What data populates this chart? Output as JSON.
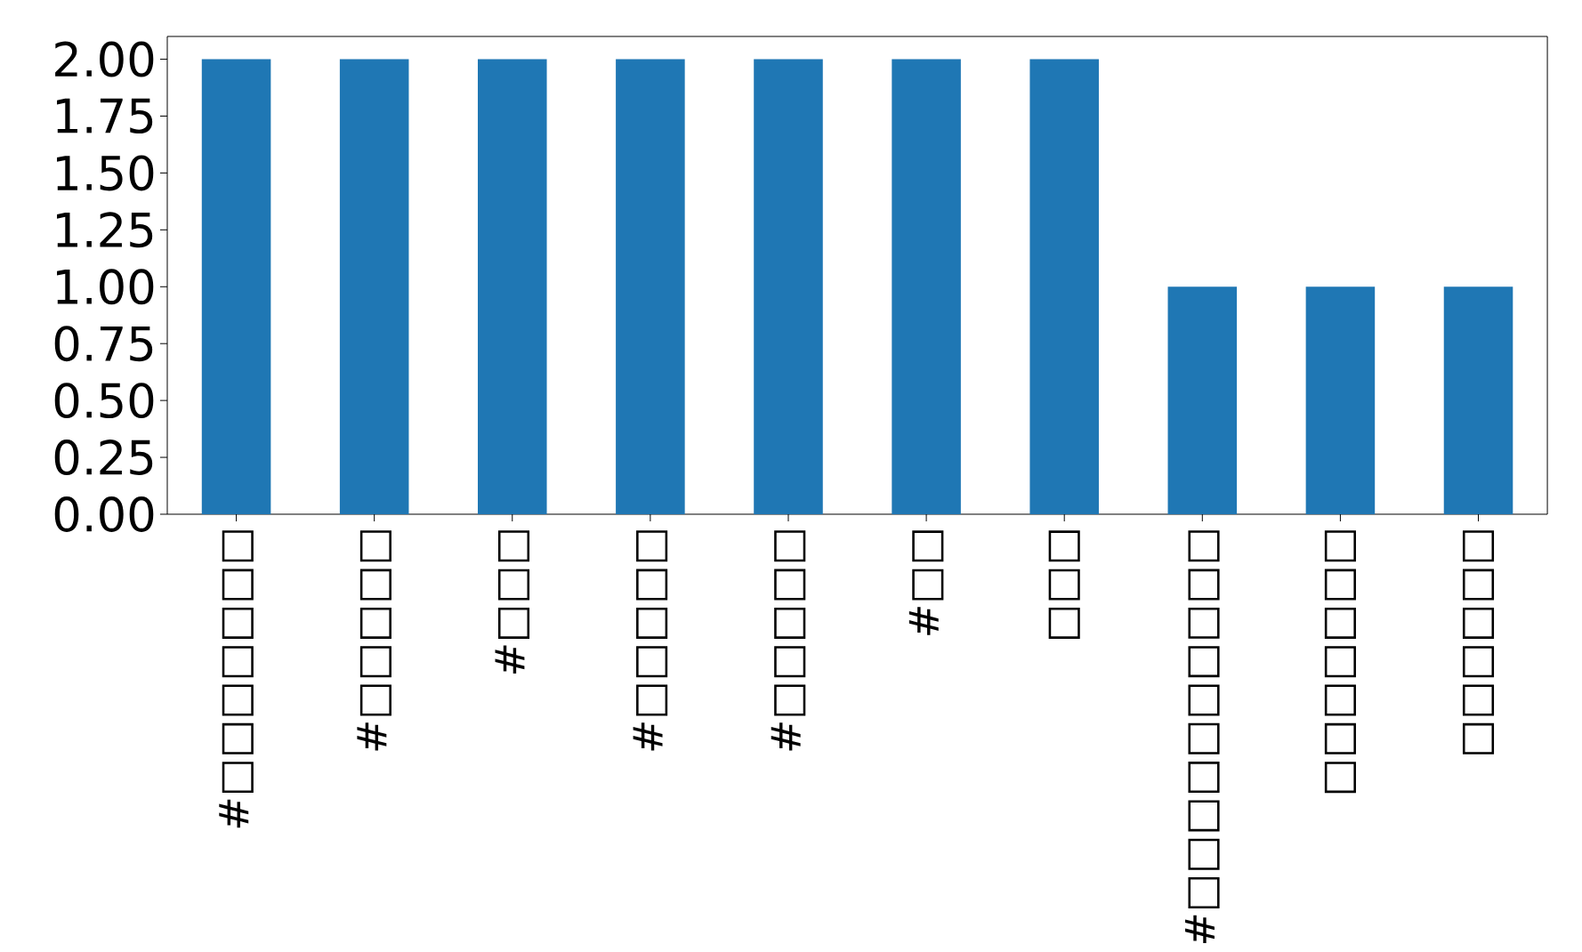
{
  "chart_data": {
    "type": "bar",
    "categories": [
      "#□□□□□□□",
      "#□□□□□",
      "#□□□",
      "#□□□□□",
      "#□□□□□",
      "#□□",
      "□□□",
      "#□□□□□□□□□□",
      "□□□□□□□",
      "□□□□□□"
    ],
    "values": [
      2,
      2,
      2,
      2,
      2,
      2,
      2,
      1,
      1,
      1
    ],
    "color": "#1f77b4",
    "ylim": [
      0,
      2.1
    ],
    "yticks": [
      {
        "value": 0,
        "label": "0.00"
      },
      {
        "value": 0.25,
        "label": "0.25"
      },
      {
        "value": 0.5,
        "label": "0.50"
      },
      {
        "value": 0.75,
        "label": "0.75"
      },
      {
        "value": 1,
        "label": "1.00"
      },
      {
        "value": 1.25,
        "label": "1.25"
      },
      {
        "value": 1.5,
        "label": "1.50"
      },
      {
        "value": 1.75,
        "label": "1.75"
      },
      {
        "value": 2,
        "label": "2.00"
      }
    ],
    "grid": false
  }
}
